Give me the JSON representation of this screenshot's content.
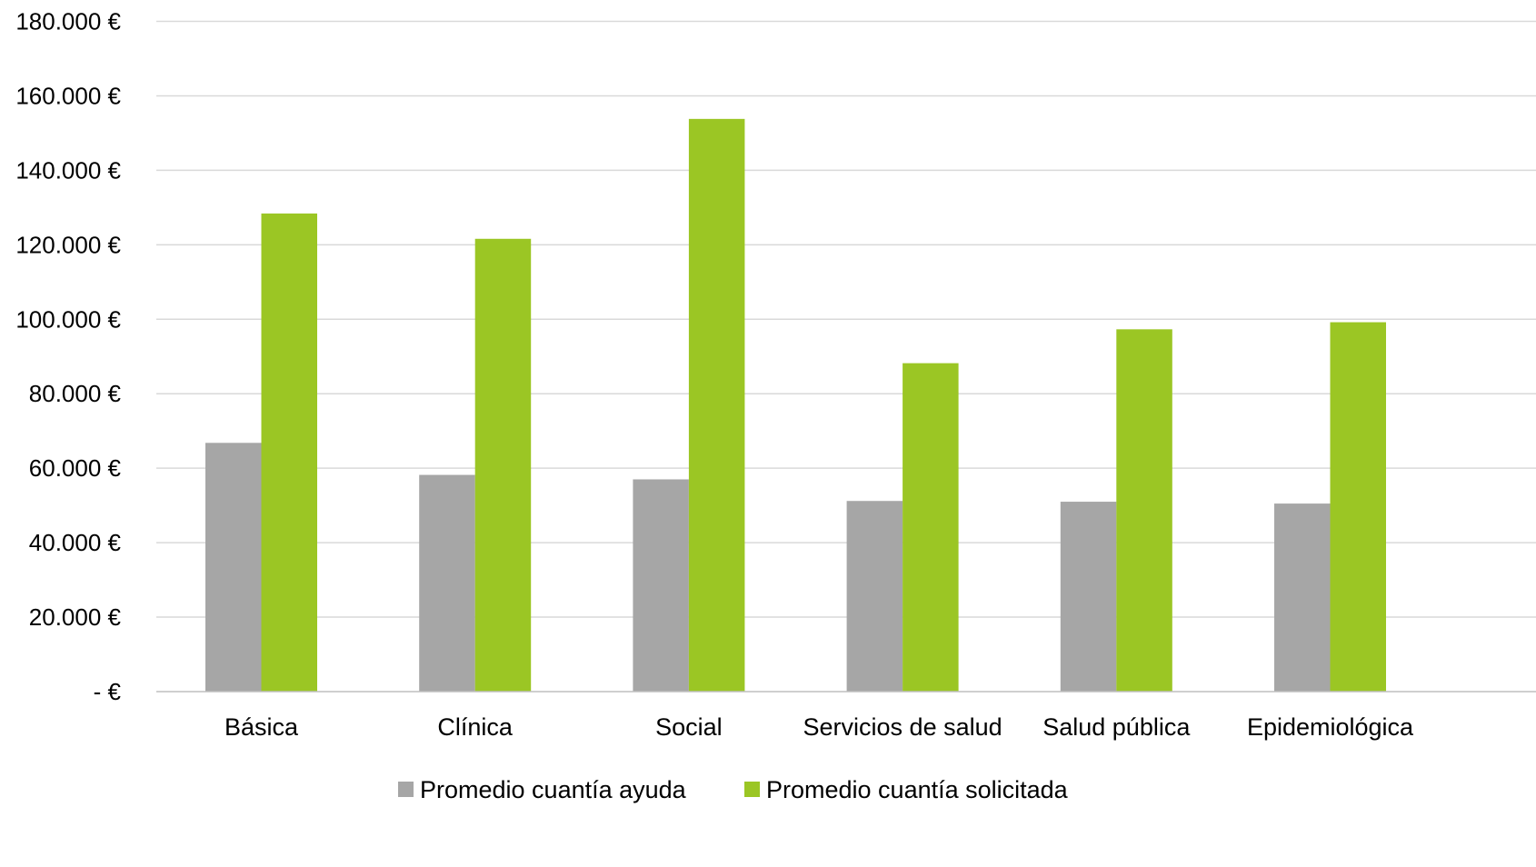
{
  "colors": {
    "series_ayuda": "#a6a6a6",
    "series_solicitada": "#9bc624",
    "grid": "#d9d9d9",
    "axis": "#bfbfbf",
    "text": "#000000"
  },
  "chart_data": {
    "type": "bar",
    "title": "",
    "xlabel": "",
    "ylabel": "",
    "ylim": [
      0,
      180000
    ],
    "grid": true,
    "legend_position": "bottom",
    "y_ticks": [
      {
        "value": 0,
        "label": "-   €"
      },
      {
        "value": 20000,
        "label": "20.000 €"
      },
      {
        "value": 40000,
        "label": "40.000 €"
      },
      {
        "value": 60000,
        "label": "60.000 €"
      },
      {
        "value": 80000,
        "label": "80.000 €"
      },
      {
        "value": 100000,
        "label": "100.000 €"
      },
      {
        "value": 120000,
        "label": "120.000 €"
      },
      {
        "value": 140000,
        "label": "140.000 €"
      },
      {
        "value": 160000,
        "label": "160.000 €"
      },
      {
        "value": 180000,
        "label": "180.000 €"
      }
    ],
    "categories": [
      "Básica",
      "Clínica",
      "Social",
      "Servicios de salud",
      "Salud pública",
      "Epidemiológica"
    ],
    "series": [
      {
        "name": "Promedio cuantía ayuda",
        "color": "#a6a6a6",
        "values": [
          66800,
          58200,
          57000,
          51200,
          51000,
          50500
        ]
      },
      {
        "name": "Promedio cuantía solicitada",
        "color": "#9bc624",
        "values": [
          128400,
          121600,
          153800,
          88200,
          97300,
          99200
        ]
      }
    ]
  }
}
